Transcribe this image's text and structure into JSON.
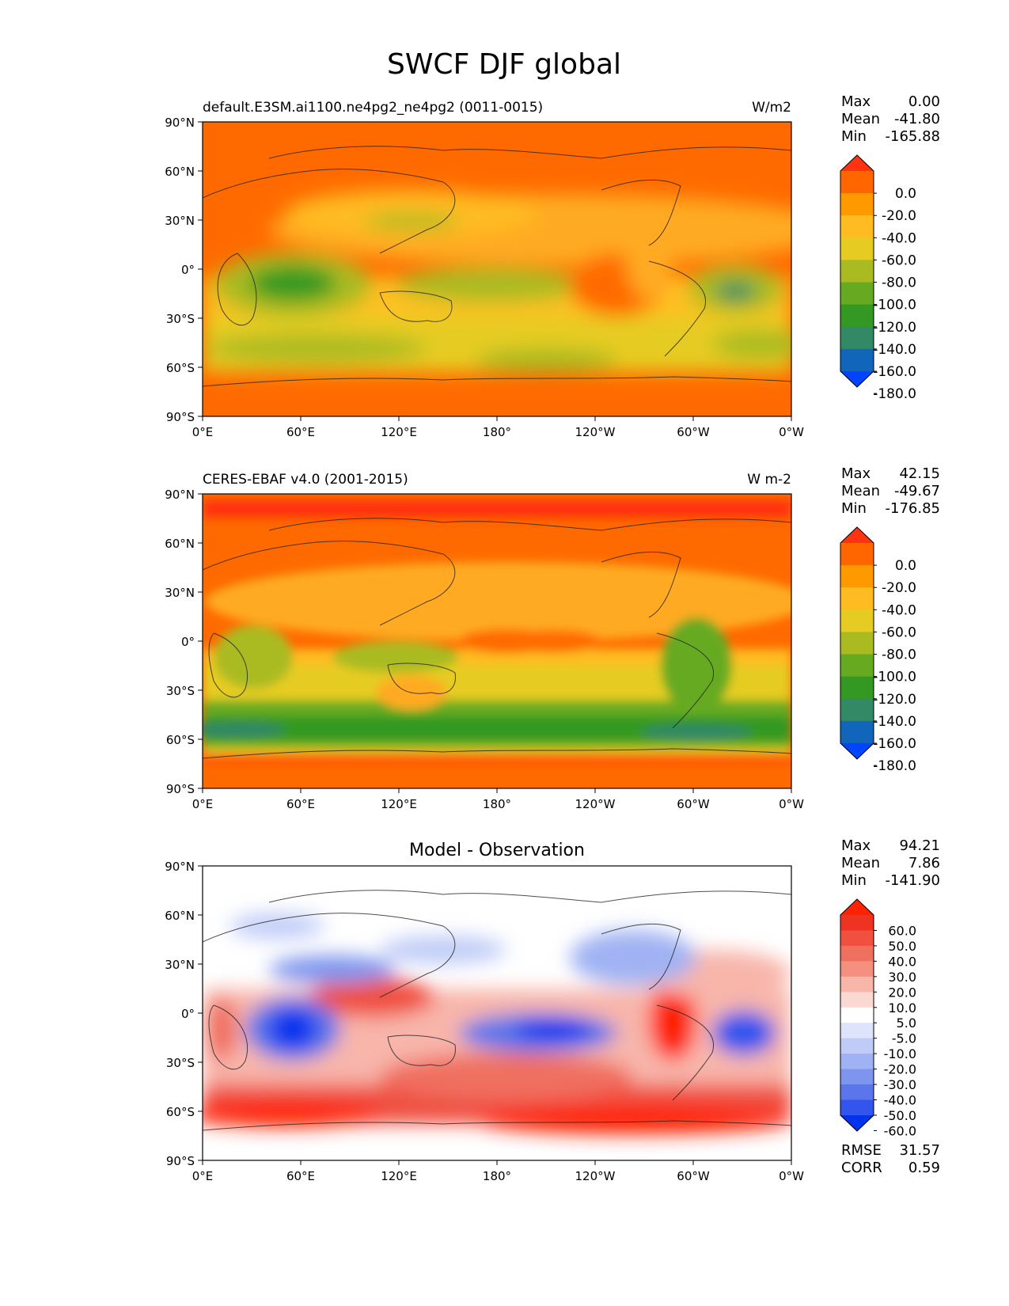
{
  "title": "SWCF DJF global",
  "panels": [
    {
      "id": "test",
      "left_label": "default.E3SM.ai1100.ne4pg2_ne4pg2 (0011-0015)",
      "right_label": "W/m2",
      "center_title": "",
      "stats": [
        {
          "label": "Max",
          "value": "0.00"
        },
        {
          "label": "Mean",
          "value": "-41.80"
        },
        {
          "label": "Min",
          "value": "-165.88"
        }
      ],
      "colorbar_type": "abs",
      "extra_stats": []
    },
    {
      "id": "reference",
      "left_label": "CERES-EBAF v4.0 (2001-2015)",
      "right_label": "W m-2",
      "center_title": "",
      "stats": [
        {
          "label": "Max",
          "value": "42.15"
        },
        {
          "label": "Mean",
          "value": "-49.67"
        },
        {
          "label": "Min",
          "value": "-176.85"
        }
      ],
      "colorbar_type": "abs",
      "extra_stats": []
    },
    {
      "id": "difference",
      "left_label": "",
      "right_label": "",
      "center_title": "Model - Observation",
      "stats": [
        {
          "label": "Max",
          "value": "94.21"
        },
        {
          "label": "Mean",
          "value": "7.86"
        },
        {
          "label": "Min",
          "value": "-141.90"
        }
      ],
      "colorbar_type": "diff",
      "extra_stats": [
        {
          "label": "RMSE",
          "value": "31.57"
        },
        {
          "label": "CORR",
          "value": "0.59"
        }
      ]
    }
  ],
  "lat_ticks": [
    "90°N",
    "60°N",
    "30°N",
    "0°",
    "30°S",
    "60°S",
    "90°S"
  ],
  "lon_ticks": [
    "0°E",
    "60°E",
    "120°E",
    "180°",
    "120°W",
    "60°W",
    "0°W"
  ],
  "colorbars": {
    "abs": {
      "labels": [
        "0.0",
        "-20.0",
        "-40.0",
        "-60.0",
        "-80.0",
        "-100.0",
        "-120.0",
        "-140.0",
        "-160.0",
        "-180.0"
      ],
      "colors": [
        "#ff3311",
        "#ff6600",
        "#ff9900",
        "#ffbb22",
        "#e6cc22",
        "#aabb22",
        "#66aa22",
        "#339922",
        "#338866",
        "#1166bb",
        "#0044ff"
      ]
    },
    "diff": {
      "labels": [
        "60.0",
        "50.0",
        "40.0",
        "30.0",
        "20.0",
        "10.0",
        "5.0",
        "-5.0",
        "-10.0",
        "-20.0",
        "-30.0",
        "-40.0",
        "-50.0",
        "-60.0"
      ],
      "colors": [
        "#ff2200",
        "#ee3322",
        "#f05040",
        "#f07060",
        "#f59080",
        "#f8b5aa",
        "#fbd8d2",
        "#ffffff",
        "#dde4fb",
        "#c0ccf7",
        "#a0b2f3",
        "#7e95ee",
        "#5a76ea",
        "#3355ee",
        "#0033ee"
      ]
    }
  },
  "chart_data": [
    {
      "type": "heatmap",
      "title": "default.E3SM.ai1100.ne4pg2_ne4pg2 (0011-0015)",
      "units": "W/m2",
      "xlim": [
        0,
        360
      ],
      "ylim": [
        -90,
        90
      ],
      "statistics": {
        "max": 0.0,
        "mean": -41.8,
        "min": -165.88
      }
    },
    {
      "type": "heatmap",
      "title": "CERES-EBAF v4.0 (2001-2015)",
      "units": "W m-2",
      "xlim": [
        0,
        360
      ],
      "ylim": [
        -90,
        90
      ],
      "statistics": {
        "max": 42.15,
        "mean": -49.67,
        "min": -176.85
      }
    },
    {
      "type": "heatmap",
      "title": "Model - Observation",
      "xlim": [
        0,
        360
      ],
      "ylim": [
        -90,
        90
      ],
      "statistics": {
        "max": 94.21,
        "mean": 7.86,
        "min": -141.9,
        "rmse": 31.57,
        "corr": 0.59
      }
    }
  ]
}
